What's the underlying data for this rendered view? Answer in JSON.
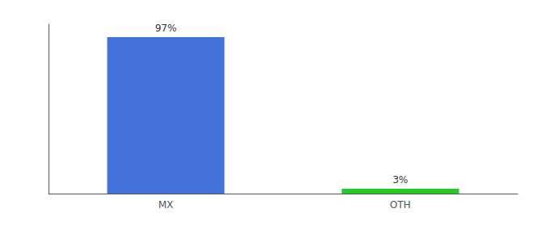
{
  "chart_data": {
    "type": "bar",
    "categories": [
      "MX",
      "OTH"
    ],
    "values": [
      97,
      3
    ],
    "colors": [
      "#4472db",
      "#22cc22"
    ],
    "data_labels": true,
    "value_labels": [
      "97%",
      "3%"
    ],
    "ylim": [
      0,
      105
    ],
    "grid": false,
    "tick_labels": "x"
  }
}
